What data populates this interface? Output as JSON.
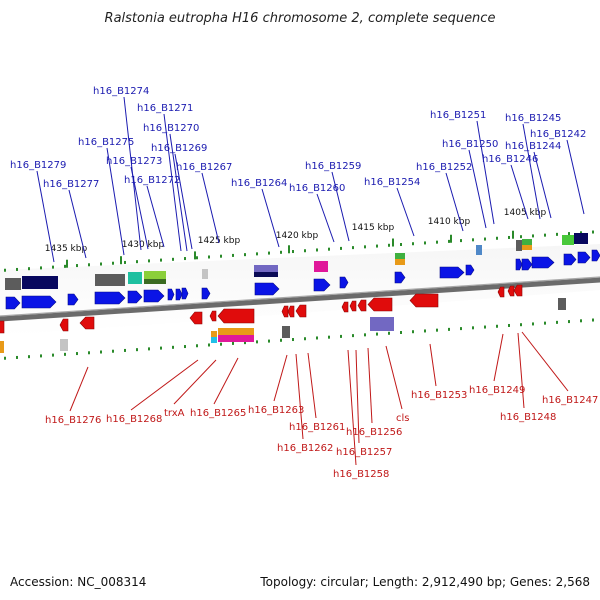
{
  "title": "Ralstonia eutropha H16 chromosome 2, complete sequence",
  "footer": {
    "accession": "Accession: NC_008314",
    "summary": "Topology: circular; Length: 2,912,490 bp; Genes: 2,568"
  },
  "ticks": [
    "1435 kbp",
    "1430 kbp",
    "1425 kbp",
    "1420 kbp",
    "1415 kbp",
    "1410 kbp",
    "1405 kbp"
  ],
  "colors": {
    "forward_gene": "#0a14e6",
    "reverse_gene": "#e00c0c",
    "top_label": "#1b1bb0",
    "bottom_label": "#c01818",
    "backbone": "#6b6b6b",
    "tick_marks": "#2a8a2a"
  },
  "top_labels": [
    "h16_B1279",
    "h16_B1277",
    "h16_B1275",
    "h16_B1274",
    "h16_B1273",
    "h16_B1272",
    "h16_B1271",
    "h16_B1270",
    "h16_B1269",
    "h16_B1267",
    "h16_B1264",
    "h16_B1260",
    "h16_B1259",
    "h16_B1254",
    "h16_B1252",
    "h16_B1251",
    "h16_B1250",
    "h16_B1246",
    "h16_B1245",
    "h16_B1244",
    "h16_B1242"
  ],
  "bottom_labels": [
    "h16_B1276",
    "h16_B1268",
    "trxA",
    "h16_B1265",
    "h16_B1263",
    "h16_B1261",
    "h16_B1262",
    "h16_B1256",
    "h16_B1257",
    "h16_B1258",
    "cls",
    "h16_B1253",
    "h16_B1249",
    "h16_B1248",
    "h16_B1247"
  ]
}
